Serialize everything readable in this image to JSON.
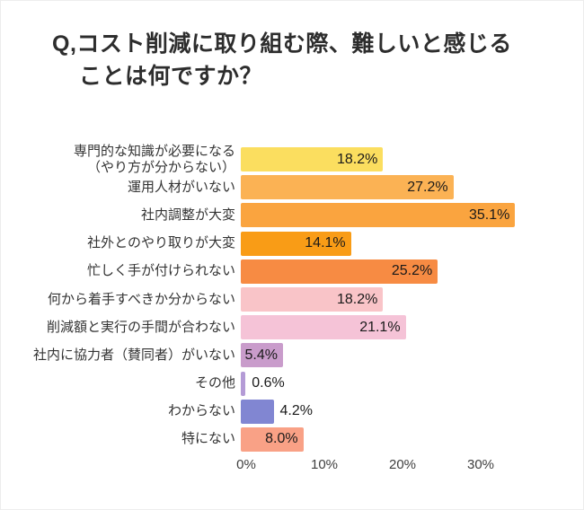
{
  "title": {
    "line1": "Q,コスト削減に取り組む際、難しいと感じる",
    "line2": "ことは何ですか？"
  },
  "chart_data": {
    "type": "bar",
    "orientation": "horizontal",
    "title": "Q,コスト削減に取り組む際、難しいと感じることは何ですか？",
    "categories": [
      "専門的な知識が必要になる\n（やり方が分からない）",
      "運用人材がいない",
      "社内調整が大変",
      "社外とのやり取りが大変",
      "忙しく手が付けられない",
      "何から着手すべきか分からない",
      "削減額と実行の手間が合わない",
      "社内に協力者（賛同者）がいない",
      "その他",
      "わからない",
      "特にない"
    ],
    "values": [
      18.2,
      27.2,
      35.1,
      14.1,
      25.2,
      18.2,
      21.1,
      5.4,
      0.6,
      4.2,
      8.0
    ],
    "value_labels": [
      "18.2%",
      "27.2%",
      "35.1%",
      "14.1%",
      "25.2%",
      "18.2%",
      "21.1%",
      "5.4%",
      "0.6%",
      "4.2%",
      "8.0%"
    ],
    "bar_colors": [
      "#FBDE5F",
      "#FBB254",
      "#FAA43F",
      "#F99C16",
      "#F78B43",
      "#F9C4C8",
      "#F5C3D7",
      "#C99CCB",
      "#B49BD6",
      "#8186D2",
      "#F9A186"
    ],
    "x_ticks": [
      0,
      10,
      20,
      30
    ],
    "x_tick_labels": [
      "0%",
      "10%",
      "20%",
      "30%"
    ],
    "xlim": [
      0,
      37
    ],
    "grid": false,
    "legend": false,
    "value_label_placement": "inside-right, outside for bars under ~5%"
  }
}
